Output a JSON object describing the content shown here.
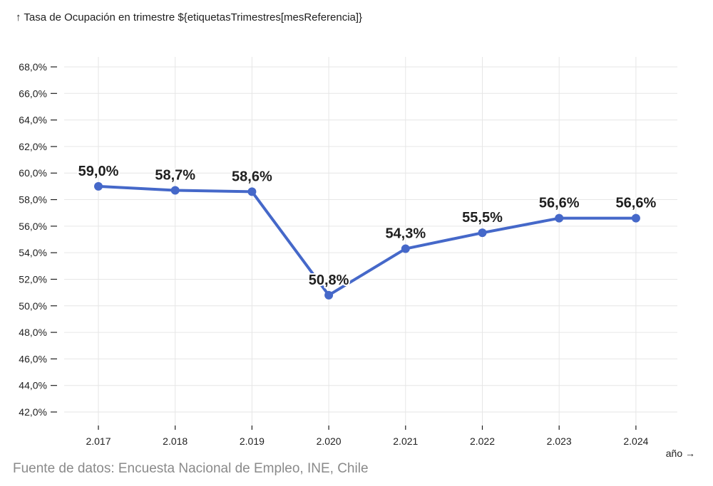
{
  "source_note": "Fuente de datos: Encuesta Nacional de Empleo, INE, Chile",
  "chart_data": {
    "type": "line",
    "title": "↑ Tasa de Ocupación en trimestre ${etiquetasTrimestres[mesReferencia]}",
    "xlabel": "año →",
    "ylabel": "",
    "x": [
      "2.017",
      "2.018",
      "2.019",
      "2.020",
      "2.021",
      "2.022",
      "2.023",
      "2.024"
    ],
    "values": [
      59.0,
      58.7,
      58.6,
      50.8,
      54.3,
      55.5,
      56.6,
      56.6
    ],
    "data_labels": [
      "59,0%",
      "58,7%",
      "58,6%",
      "50,8%",
      "54,3%",
      "55,5%",
      "56,6%",
      "56,6%"
    ],
    "yticks": [
      42,
      44,
      46,
      48,
      50,
      52,
      54,
      56,
      58,
      60,
      62,
      64,
      66,
      68
    ],
    "ytick_labels": [
      "42,0%",
      "44,0%",
      "46,0%",
      "48,0%",
      "50,0%",
      "52,0%",
      "54,0%",
      "56,0%",
      "58,0%",
      "60,0%",
      "62,0%",
      "64,0%",
      "66,0%",
      "68,0%"
    ],
    "ylim": [
      41,
      69
    ],
    "grid": true,
    "line_color": "#4568c9"
  }
}
